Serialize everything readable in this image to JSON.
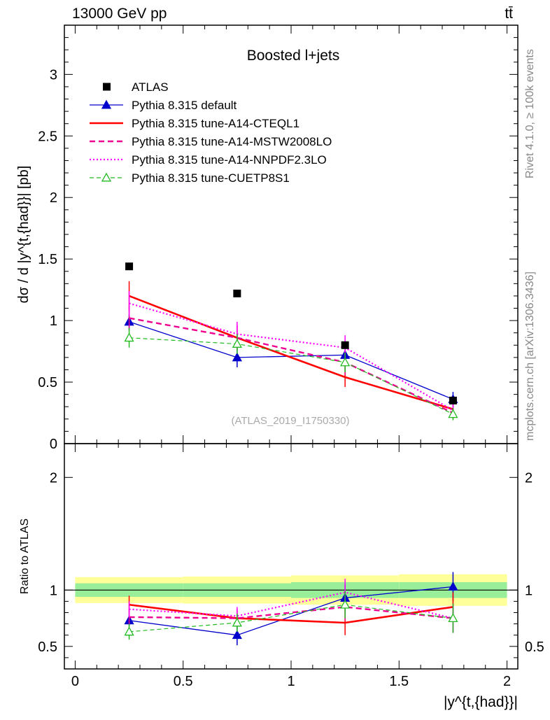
{
  "header": {
    "energy_label": "13000 GeV pp",
    "process_label": "tt̄"
  },
  "side_labels": {
    "rivet": "Rivet 4.1.0, ≥ 100k events",
    "mcplots": "mcplots.cern.ch [arXiv:1306.3436]"
  },
  "chart_data": [
    {
      "panel": "main",
      "type": "line",
      "title": "Boosted l+jets",
      "ylabel": "dσ / d |y^{t,{had}}| [pb]",
      "ylim": [
        0,
        3.4
      ],
      "yticks": [
        0,
        0.5,
        1,
        1.5,
        2,
        2.5,
        3
      ],
      "ytick_labels": [
        "0",
        "0.5",
        "1",
        "1.5",
        "2",
        "2.5",
        "3"
      ],
      "watermark": "(ATLAS_2019_I1750330)",
      "x": [
        0.25,
        0.75,
        1.25,
        1.75
      ],
      "series": [
        {
          "name": "ATLAS",
          "style": "data",
          "color": "#000000",
          "values": [
            1.44,
            1.22,
            0.8,
            0.35
          ],
          "errors": [
            0.0,
            0.0,
            0.02,
            0.02
          ]
        },
        {
          "name": "Pythia 8.315 default",
          "style": "solid",
          "marker": "triangle-filled",
          "color": "#0000cc",
          "values": [
            0.99,
            0.7,
            0.72,
            0.36
          ],
          "errors": [
            0.06,
            0.08,
            0.1,
            0.06
          ]
        },
        {
          "name": "Pythia 8.315 tune-A14-CTEQL1",
          "style": "solid-thick",
          "marker": "none",
          "color": "#ff0000",
          "values": [
            1.2,
            0.86,
            0.54,
            0.28
          ],
          "errors": [
            0.12,
            0.1,
            0.08,
            0.05
          ]
        },
        {
          "name": "Pythia 8.315 tune-A14-MSTW2008LO",
          "style": "dashed",
          "marker": "none",
          "color": "#ee0090",
          "values": [
            1.02,
            0.86,
            0.66,
            0.25
          ],
          "errors": [
            0.1,
            0.1,
            0.1,
            0.05
          ]
        },
        {
          "name": "Pythia 8.315 tune-A14-NNPDF2.3LO",
          "style": "dotted",
          "marker": "none",
          "color": "#ff00ff",
          "values": [
            1.14,
            0.89,
            0.78,
            0.27
          ],
          "errors": [
            0.1,
            0.1,
            0.1,
            0.05
          ]
        },
        {
          "name": "Pythia 8.315 tune-CUETP8S1",
          "style": "dashed-thin",
          "marker": "triangle-open",
          "color": "#22bb22",
          "values": [
            0.86,
            0.81,
            0.66,
            0.24
          ],
          "errors": [
            0.08,
            0.08,
            0.08,
            0.05
          ]
        }
      ]
    },
    {
      "panel": "ratio",
      "type": "line",
      "ylabel": "Ratio to ATLAS",
      "ylim": [
        0.3,
        2.3
      ],
      "yticks": [
        0.5,
        1,
        2
      ],
      "ytick_labels": [
        "0.5",
        "1",
        "2"
      ],
      "xlabel": "|y^{t,{had}}|",
      "xlim": [
        -0.05,
        2.05
      ],
      "xticks": [
        0,
        0.5,
        1,
        1.5,
        2
      ],
      "xtick_labels": [
        "0",
        "0.5",
        "1",
        "1.5",
        "2"
      ],
      "bins": [
        [
          0.0,
          0.5
        ],
        [
          0.5,
          1.0
        ],
        [
          1.0,
          1.5
        ],
        [
          1.5,
          2.0
        ]
      ],
      "band_inner": [
        0.06,
        0.06,
        0.07,
        0.07
      ],
      "band_outer": [
        0.115,
        0.12,
        0.13,
        0.14
      ],
      "x": [
        0.25,
        0.75,
        1.25,
        1.75
      ],
      "series": [
        {
          "name": "Pythia 8.315 default",
          "values": [
            0.73,
            0.6,
            0.93,
            1.03
          ],
          "errors": [
            0.05,
            0.09,
            0.12,
            0.13
          ]
        },
        {
          "name": "Pythia 8.315 tune-A14-CTEQL1",
          "values": [
            0.87,
            0.75,
            0.71,
            0.85
          ],
          "errors": [
            0.08,
            0.08,
            0.11,
            0.13
          ]
        },
        {
          "name": "Pythia 8.315 tune-A14-MSTW2008LO",
          "values": [
            0.76,
            0.75,
            0.85,
            0.75
          ],
          "errors": [
            0.07,
            0.08,
            0.12,
            0.13
          ]
        },
        {
          "name": "Pythia 8.315 tune-A14-NNPDF2.3LO",
          "values": [
            0.83,
            0.77,
            0.98,
            0.75
          ],
          "errors": [
            0.07,
            0.08,
            0.12,
            0.13
          ]
        },
        {
          "name": "Pythia 8.315 tune-CUETP8S1",
          "values": [
            0.63,
            0.71,
            0.87,
            0.75
          ],
          "errors": [
            0.07,
            0.08,
            0.12,
            0.13
          ]
        }
      ]
    }
  ]
}
